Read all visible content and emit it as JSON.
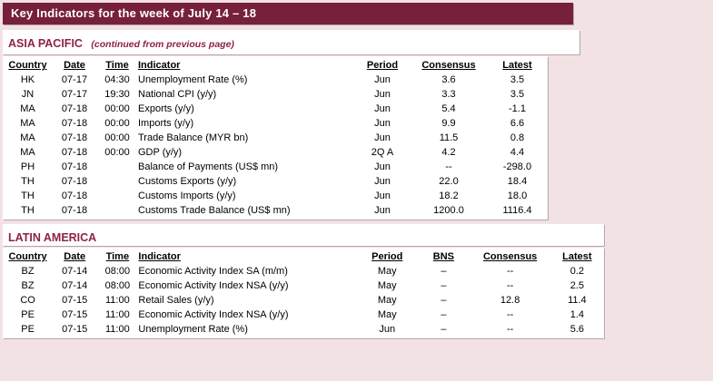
{
  "page": {
    "title": "Key Indicators for the week of July 14 – 18"
  },
  "colors": {
    "header_bar": "#76203a",
    "section_title": "#8e2344",
    "background": "#f3e2e4"
  },
  "sections": {
    "asia": {
      "title": "ASIA PACIFIC",
      "subtitle": "(continued from previous page)",
      "table": {
        "headers": [
          "Country",
          "Date",
          "Time",
          "Indicator",
          "Period",
          "Consensus",
          "Latest"
        ],
        "rows": [
          [
            "HK",
            "07-17",
            "04:30",
            "Unemployment Rate (%)",
            "Jun",
            "3.6",
            "3.5"
          ],
          [
            "JN",
            "07-17",
            "19:30",
            "National CPI (y/y)",
            "Jun",
            "3.3",
            "3.5"
          ],
          [
            "MA",
            "07-18",
            "00:00",
            "Exports (y/y)",
            "Jun",
            "5.4",
            "-1.1"
          ],
          [
            "MA",
            "07-18",
            "00:00",
            "Imports (y/y)",
            "Jun",
            "9.9",
            "6.6"
          ],
          [
            "MA",
            "07-18",
            "00:00",
            "Trade Balance (MYR bn)",
            "Jun",
            "11.5",
            "0.8"
          ],
          [
            "MA",
            "07-18",
            "00:00",
            "GDP (y/y)",
            "2Q A",
            "4.2",
            "4.4"
          ],
          [
            "PH",
            "07-18",
            "",
            "Balance of Payments (US$ mn)",
            "Jun",
            "--",
            "-298.0"
          ],
          [
            "TH",
            "07-18",
            "",
            "Customs Exports (y/y)",
            "Jun",
            "22.0",
            "18.4"
          ],
          [
            "TH",
            "07-18",
            "",
            "Customs Imports (y/y)",
            "Jun",
            "18.2",
            "18.0"
          ],
          [
            "TH",
            "07-18",
            "",
            "Customs Trade Balance (US$ mn)",
            "Jun",
            "1200.0",
            "1116.4"
          ]
        ]
      }
    },
    "latam": {
      "title": "LATIN AMERICA",
      "table": {
        "headers": [
          "Country",
          "Date",
          "Time",
          "Indicator",
          "Period",
          "BNS",
          "Consensus",
          "Latest"
        ],
        "rows": [
          [
            "BZ",
            "07-14",
            "08:00",
            "Economic Activity Index SA (m/m)",
            "May",
            "–",
            "--",
            "0.2"
          ],
          [
            "BZ",
            "07-14",
            "08:00",
            "Economic Activity Index NSA (y/y)",
            "May",
            "–",
            "--",
            "2.5"
          ],
          [
            "CO",
            "07-15",
            "11:00",
            "Retail Sales (y/y)",
            "May",
            "–",
            "12.8",
            "11.4"
          ],
          [
            "PE",
            "07-15",
            "11:00",
            "Economic Activity Index NSA (y/y)",
            "May",
            "–",
            "--",
            "1.4"
          ],
          [
            "PE",
            "07-15",
            "11:00",
            "Unemployment Rate (%)",
            "Jun",
            "–",
            "--",
            "5.6"
          ]
        ]
      }
    }
  }
}
